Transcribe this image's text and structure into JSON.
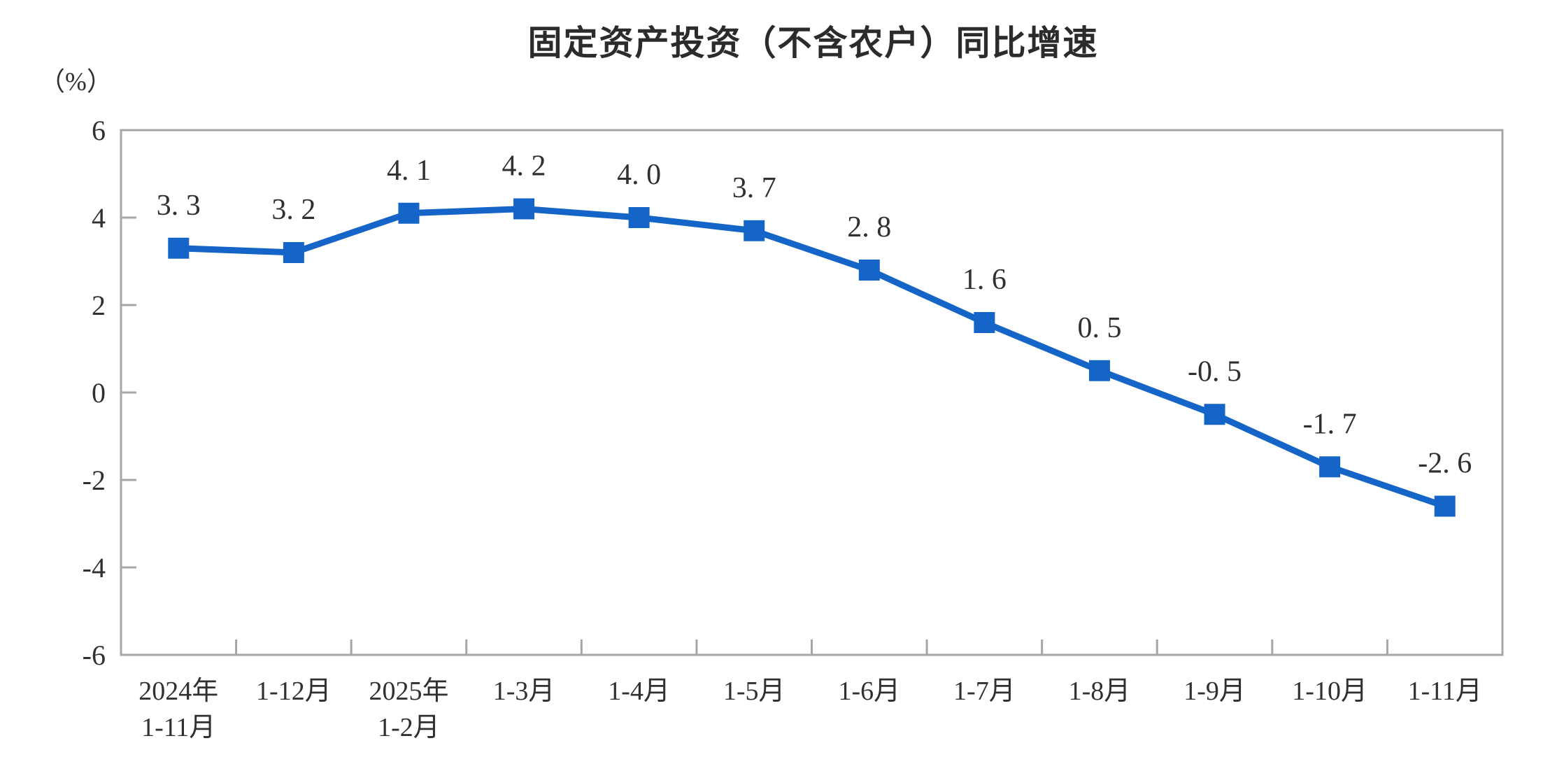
{
  "chart": {
    "title": "固定资产投资（不含农户）同比增速",
    "y_unit": "（%）"
  },
  "chart_data": {
    "type": "line",
    "title": "固定资产投资（不含农户）同比增速",
    "ylabel": "（%）",
    "xlabel": "",
    "categories": [
      "2024年1-11月",
      "1-12月",
      "2025年1-2月",
      "1-3月",
      "1-4月",
      "1-5月",
      "1-6月",
      "1-7月",
      "1-8月",
      "1-9月",
      "1-10月",
      "1-11月"
    ],
    "category_lines": [
      [
        "2024年",
        "1-11月"
      ],
      [
        "1-12月"
      ],
      [
        "2025年",
        "1-2月"
      ],
      [
        "1-3月"
      ],
      [
        "1-4月"
      ],
      [
        "1-5月"
      ],
      [
        "1-6月"
      ],
      [
        "1-7月"
      ],
      [
        "1-8月"
      ],
      [
        "1-9月"
      ],
      [
        "1-10月"
      ],
      [
        "1-11月"
      ]
    ],
    "values": [
      3.3,
      3.2,
      4.1,
      4.2,
      4.0,
      3.7,
      2.8,
      1.6,
      0.5,
      -0.5,
      -1.7,
      -2.6
    ],
    "point_labels": [
      "3. 3",
      "3. 2",
      "4. 1",
      "4. 2",
      "4. 0",
      "3. 7",
      "2. 8",
      "1. 6",
      "0. 5",
      "-0. 5",
      "-1. 7",
      "-2. 6"
    ],
    "ylim": [
      -6,
      6
    ],
    "yticks": [
      6,
      4,
      2,
      0,
      -2,
      -4,
      -6
    ],
    "grid": false,
    "legend": "none",
    "marker": "square",
    "line_color": "#1565C8",
    "marker_color": "#1565C8",
    "axis_color": "#A6A6A6",
    "text_color": "#303030"
  }
}
